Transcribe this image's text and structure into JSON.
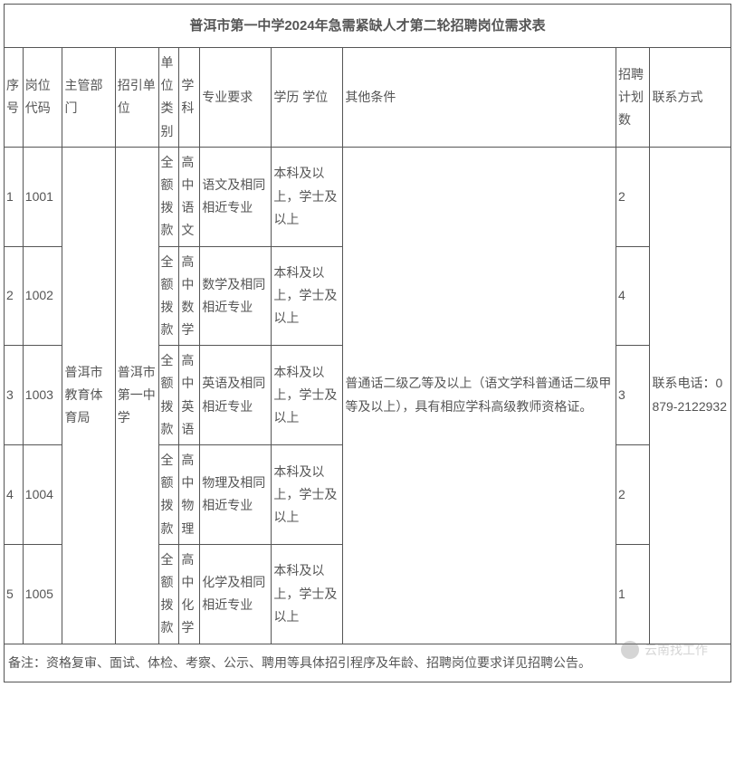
{
  "title": "普洱市第一中学2024年急需紧缺人才第二轮招聘岗位需求表",
  "headers": {
    "seq": "序号",
    "post_code": "岗位代码",
    "dept": "主管部门",
    "employer": "招引单位",
    "unit_type": "单位类别",
    "subject": "学科",
    "major": "专业要求",
    "edu": "学历 学位",
    "other": "其他条件",
    "plan": "招聘计划数",
    "contact": "联系方式"
  },
  "merged": {
    "dept": "普洱市教育体育局",
    "employer": "普洱市第一中学",
    "other": "普通话二级乙等及以上（语文学科普通话二级甲等及以上），具有相应学科高级教师资格证。",
    "contact": "联系电话：0879-2122932"
  },
  "rows": [
    {
      "seq": "1",
      "post_code": "1001",
      "unit_type": "全额拨款",
      "subject": "高中语文",
      "major": "语文及相同相近专业",
      "edu": "本科及以上，学士及以上",
      "plan": "2"
    },
    {
      "seq": "2",
      "post_code": "1002",
      "unit_type": "全额拨款",
      "subject": "高中数学",
      "major": "数学及相同相近专业",
      "edu": "本科及以上，学士及以上",
      "plan": "4"
    },
    {
      "seq": "3",
      "post_code": "1003",
      "unit_type": "全额拨款",
      "subject": "高中英语",
      "major": "英语及相同相近专业",
      "edu": "本科及以上，学士及以上",
      "plan": "3"
    },
    {
      "seq": "4",
      "post_code": "1004",
      "unit_type": "全额拨款",
      "subject": "高中物理",
      "major": "物理及相同相近专业",
      "edu": "本科及以上，学士及以上",
      "plan": "2"
    },
    {
      "seq": "5",
      "post_code": "1005",
      "unit_type": "全额拨款",
      "subject": "高中化学",
      "major": "化学及相同相近专业",
      "edu": "本科及以上，学士及以上",
      "plan": "1"
    }
  ],
  "footer": "备注：资格复审、面试、体检、考察、公示、聘用等具体招引程序及年龄、招聘岗位要求详见招聘公告。",
  "watermark": "云南找工作",
  "col_widths": {
    "seq": "20px",
    "post_code": "42px",
    "dept": "56px",
    "employer": "46px",
    "unit_type": "22px",
    "subject": "22px",
    "major": "76px",
    "edu": "76px",
    "other": "290px",
    "plan": "36px",
    "contact": "86px"
  }
}
